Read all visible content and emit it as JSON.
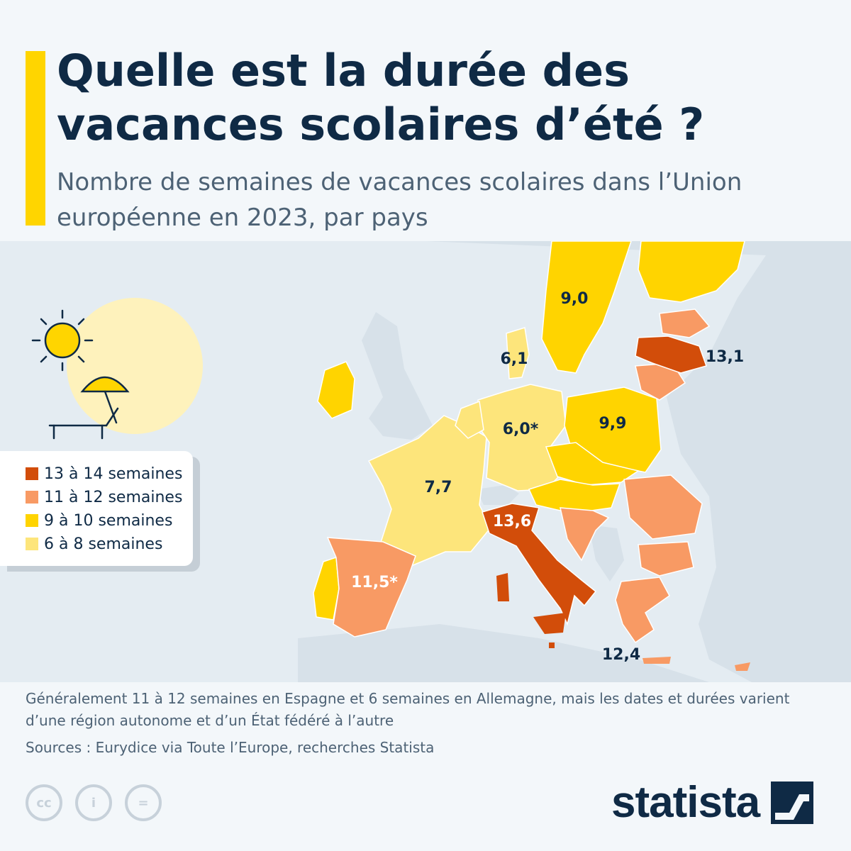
{
  "title": "Quelle est la durée des vacances scolaires d’été ?",
  "subtitle": "Nombre de semaines de vacances scolaires dans l’Union européenne en 2023, par pays",
  "legend": [
    {
      "label": "13 à 14 semaines",
      "color": "#d24d0a"
    },
    {
      "label": "11 à 12 semaines",
      "color": "#f89a64"
    },
    {
      "label": "9 à 10 semaines",
      "color": "#ffd400"
    },
    {
      "label": "6 à 8 semaines",
      "color": "#fde57b"
    }
  ],
  "map": {
    "sea_color": "#e4ecf2",
    "non_eu_color": "#d7e1e9",
    "countries": {
      "sweden": {
        "value": "9,0",
        "weeks": 9.0
      },
      "denmark": {
        "value": "6,1",
        "weeks": 6.1
      },
      "latvia": {
        "value": "13,1",
        "weeks": 13.1
      },
      "germany": {
        "value": "6,0*",
        "weeks": 6.0
      },
      "poland": {
        "value": "9,9",
        "weeks": 9.9
      },
      "france": {
        "value": "7,7",
        "weeks": 7.7
      },
      "italy": {
        "value": "13,6",
        "weeks": 13.6
      },
      "spain": {
        "value": "11,5*",
        "weeks": 11.5
      },
      "greece": {
        "value": "12,4",
        "weeks": 12.4
      }
    }
  },
  "note": "Généralement 11 à 12 semaines en Espagne et 6 semaines en Allemagne, mais les dates et durées varient d’une région autonome et d’un État fédéré à l’autre",
  "sources": "Sources : Eurydice via Toute l’Europe, recherches Statista",
  "brand": "statista",
  "cc_icons": [
    "cc-icon",
    "attribution-icon",
    "no-derivatives-icon"
  ],
  "cc_glyphs": [
    "cc",
    "i",
    "="
  ]
}
